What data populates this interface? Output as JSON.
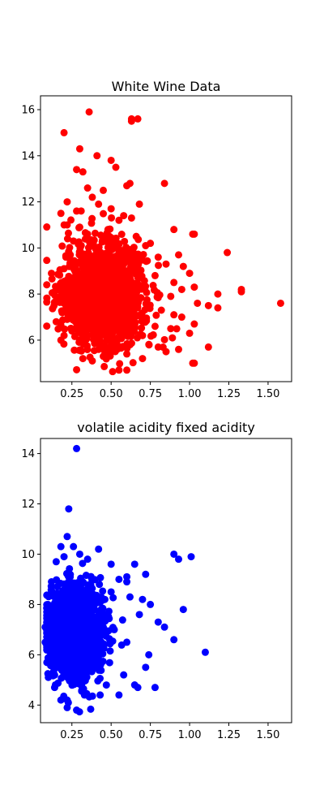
{
  "chart_data": [
    {
      "type": "scatter",
      "title": "White Wine Data",
      "xlabel": "",
      "ylabel": "",
      "xlim": [
        0.05,
        1.65
      ],
      "ylim": [
        4.2,
        16.6
      ],
      "xticks": [
        0.25,
        0.5,
        0.75,
        1.0,
        1.25,
        1.5
      ],
      "xtick_labels": [
        "0.25",
        "0.50",
        "0.75",
        "1.00",
        "1.25",
        "1.50"
      ],
      "yticks": [
        6,
        8,
        10,
        12,
        14,
        16
      ],
      "ytick_labels": [
        "6",
        "8",
        "10",
        "12",
        "14",
        "16"
      ],
      "grid": false,
      "series": [
        {
          "color": "#ff0000",
          "points": [
            [
              0.2,
              15.0
            ],
            [
              0.36,
              15.9
            ],
            [
              0.63,
              15.5
            ],
            [
              0.63,
              15.6
            ],
            [
              0.67,
              15.6
            ],
            [
              0.3,
              14.3
            ],
            [
              0.41,
              14.0
            ],
            [
              0.32,
              13.3
            ],
            [
              0.5,
              13.8
            ],
            [
              0.53,
              13.5
            ],
            [
              0.28,
              13.4
            ],
            [
              0.84,
              12.8
            ],
            [
              0.62,
              12.8
            ],
            [
              0.22,
              12.0
            ],
            [
              0.6,
              12.7
            ],
            [
              0.45,
              12.5
            ],
            [
              0.68,
              11.9
            ],
            [
              0.18,
              11.5
            ],
            [
              0.58,
              11.4
            ],
            [
              0.63,
              11.3
            ],
            [
              0.22,
              11.0
            ],
            [
              0.9,
              10.8
            ],
            [
              1.02,
              10.6
            ],
            [
              1.03,
              10.6
            ],
            [
              0.75,
              10.2
            ],
            [
              1.24,
              9.8
            ],
            [
              0.93,
              9.7
            ],
            [
              0.96,
              9.2
            ],
            [
              0.12,
              8.9
            ],
            [
              1.0,
              8.9
            ],
            [
              0.9,
              8.5
            ],
            [
              1.03,
              8.3
            ],
            [
              1.33,
              8.2
            ],
            [
              1.33,
              8.1
            ],
            [
              1.18,
              8.0
            ],
            [
              1.58,
              7.6
            ],
            [
              1.12,
              7.5
            ],
            [
              1.18,
              7.4
            ],
            [
              1.05,
              7.6
            ],
            [
              0.95,
              7.0
            ],
            [
              0.15,
              6.8
            ],
            [
              0.18,
              6.0
            ],
            [
              0.2,
              6.2
            ],
            [
              1.0,
              6.3
            ],
            [
              1.03,
              6.7
            ],
            [
              1.12,
              5.7
            ],
            [
              0.93,
              5.6
            ],
            [
              0.85,
              5.5
            ],
            [
              0.6,
              4.7
            ],
            [
              0.55,
              4.7
            ],
            [
              1.02,
              5.0
            ],
            [
              1.03,
              5.0
            ],
            [
              0.38,
              5.1
            ],
            [
              0.32,
              5.2
            ],
            [
              0.7,
              5.2
            ],
            [
              0.45,
              5.3
            ],
            [
              0.6,
              5.4
            ],
            [
              0.8,
              5.7
            ],
            [
              0.25,
              6.4
            ],
            [
              0.88,
              6.5
            ],
            [
              0.35,
              12.6
            ],
            [
              0.38,
              12.2
            ],
            [
              0.42,
              11.9
            ],
            [
              0.5,
              11.7
            ],
            [
              0.55,
              11.2
            ],
            [
              0.28,
              11.6
            ],
            [
              0.3,
              10.9
            ],
            [
              0.48,
              10.8
            ],
            [
              0.66,
              10.5
            ],
            [
              0.72,
              10.1
            ],
            [
              0.8,
              9.6
            ],
            [
              0.85,
              9.3
            ],
            [
              0.78,
              8.8
            ],
            [
              0.95,
              8.2
            ],
            [
              0.88,
              7.9
            ],
            [
              0.82,
              7.3
            ],
            [
              0.9,
              7.1
            ],
            [
              0.78,
              6.6
            ],
            [
              0.7,
              6.2
            ],
            [
              0.62,
              5.8
            ],
            [
              0.5,
              5.9
            ],
            [
              0.42,
              5.6
            ],
            [
              0.3,
              6.0
            ],
            [
              0.22,
              6.9
            ],
            [
              0.2,
              7.6
            ],
            [
              0.18,
              8.2
            ],
            [
              0.2,
              9.1
            ],
            [
              0.24,
              9.7
            ],
            [
              0.26,
              10.3
            ],
            [
              0.35,
              10.6
            ]
          ]
        }
      ],
      "cloud": {
        "center": [
          0.45,
          8.0
        ],
        "spread": [
          0.13,
          1.1
        ],
        "count": 1400
      }
    },
    {
      "type": "scatter",
      "title": "volatile acidity fixed acidity",
      "xlabel": "",
      "ylabel": "",
      "xlim": [
        0.05,
        1.65
      ],
      "ylim": [
        3.3,
        14.6
      ],
      "xticks": [
        0.25,
        0.5,
        0.75,
        1.0,
        1.25,
        1.5
      ],
      "xtick_labels": [
        "0.25",
        "0.50",
        "0.75",
        "1.00",
        "1.25",
        "1.50"
      ],
      "yticks": [
        4,
        6,
        8,
        10,
        12,
        14
      ],
      "ytick_labels": [
        "4",
        "6",
        "8",
        "10",
        "12",
        "14"
      ],
      "grid": false,
      "series": [
        {
          "color": "#0000ff",
          "points": [
            [
              0.28,
              14.2
            ],
            [
              0.23,
              11.8
            ],
            [
              0.22,
              10.7
            ],
            [
              0.26,
              10.3
            ],
            [
              0.18,
              10.3
            ],
            [
              0.42,
              10.2
            ],
            [
              0.9,
              10.0
            ],
            [
              0.93,
              9.8
            ],
            [
              1.01,
              9.9
            ],
            [
              0.65,
              9.6
            ],
            [
              0.72,
              9.2
            ],
            [
              0.55,
              9.0
            ],
            [
              0.6,
              9.1
            ],
            [
              0.5,
              8.5
            ],
            [
              0.62,
              8.3
            ],
            [
              0.7,
              8.2
            ],
            [
              0.68,
              7.6
            ],
            [
              0.96,
              7.8
            ],
            [
              0.8,
              7.3
            ],
            [
              0.84,
              7.1
            ],
            [
              0.9,
              6.6
            ],
            [
              1.1,
              6.1
            ],
            [
              0.78,
              4.7
            ],
            [
              0.65,
              4.8
            ],
            [
              0.67,
              4.7
            ],
            [
              0.55,
              4.4
            ],
            [
              0.43,
              4.4
            ],
            [
              0.33,
              4.4
            ],
            [
              0.28,
              3.8
            ],
            [
              0.22,
              3.9
            ],
            [
              0.18,
              4.2
            ],
            [
              0.22,
              4.2
            ],
            [
              0.14,
              4.7
            ],
            [
              0.1,
              5.1
            ],
            [
              0.08,
              6.5
            ],
            [
              0.08,
              7.1
            ],
            [
              0.12,
              8.9
            ],
            [
              0.15,
              9.7
            ],
            [
              0.58,
              5.2
            ],
            [
              0.72,
              5.5
            ],
            [
              0.74,
              6.0
            ],
            [
              0.6,
              6.5
            ],
            [
              0.75,
              8.0
            ],
            [
              0.6,
              8.9
            ],
            [
              0.5,
              9.6
            ],
            [
              0.35,
              9.8
            ],
            [
              0.3,
              10.0
            ],
            [
              0.2,
              9.9
            ],
            [
              0.46,
              8.2
            ],
            [
              0.52,
              7.0
            ]
          ]
        }
      ],
      "cloud": {
        "center": [
          0.27,
          6.85
        ],
        "spread": [
          0.08,
          0.85
        ],
        "count": 2200
      }
    }
  ]
}
